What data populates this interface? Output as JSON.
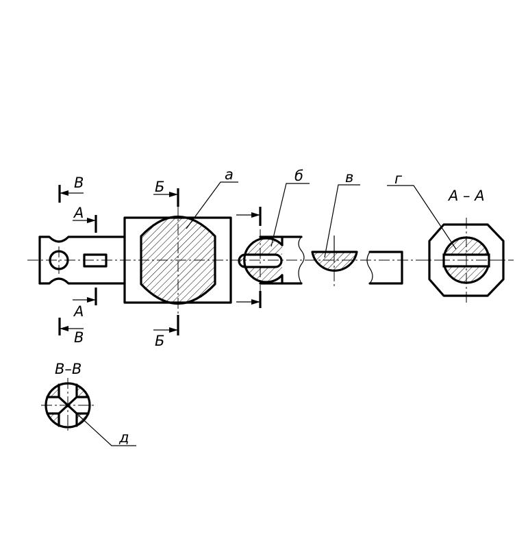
{
  "labels": {
    "section_V": "В",
    "section_A": "А",
    "section_B": "Б",
    "callout_a": "а",
    "callout_b": "б",
    "callout_v": "в",
    "callout_g": "г",
    "callout_d": "д",
    "section_view_AA": "А – А",
    "section_view_VV": "В–В"
  },
  "colors": {
    "line": "#000000",
    "background": "#ffffff"
  }
}
